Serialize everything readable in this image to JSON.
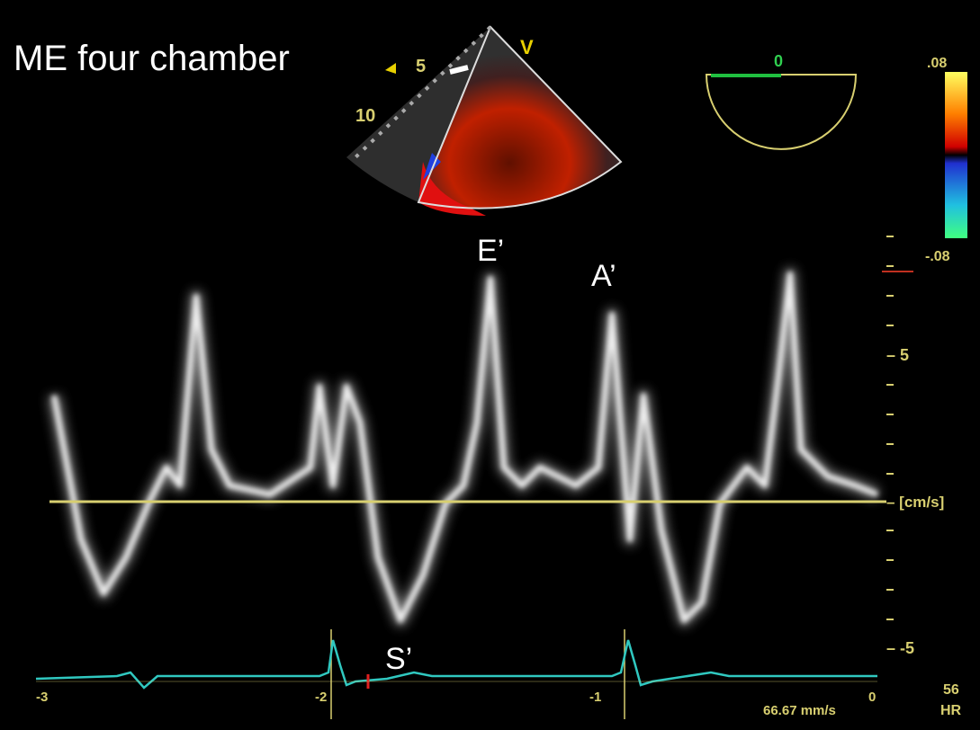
{
  "title": "ME four chamber",
  "sector": {
    "depth_labels": [
      "5",
      "10"
    ],
    "marker": "V"
  },
  "angle": {
    "label": "0"
  },
  "color_scale": {
    "top": ".08",
    "bottom": "-.08"
  },
  "annotations": {
    "e_wave": "E’",
    "a_wave": "A’",
    "s_wave": "S’"
  },
  "velocity_axis": {
    "upper": "– 5",
    "unit": "– [cm/s]",
    "lower": "– -5"
  },
  "time_axis": {
    "ticks": [
      "-3",
      "-2",
      "-1",
      "0"
    ]
  },
  "sweep_speed": "66.67 mm/s",
  "heart_rate": {
    "value": "56",
    "label": "HR"
  }
}
